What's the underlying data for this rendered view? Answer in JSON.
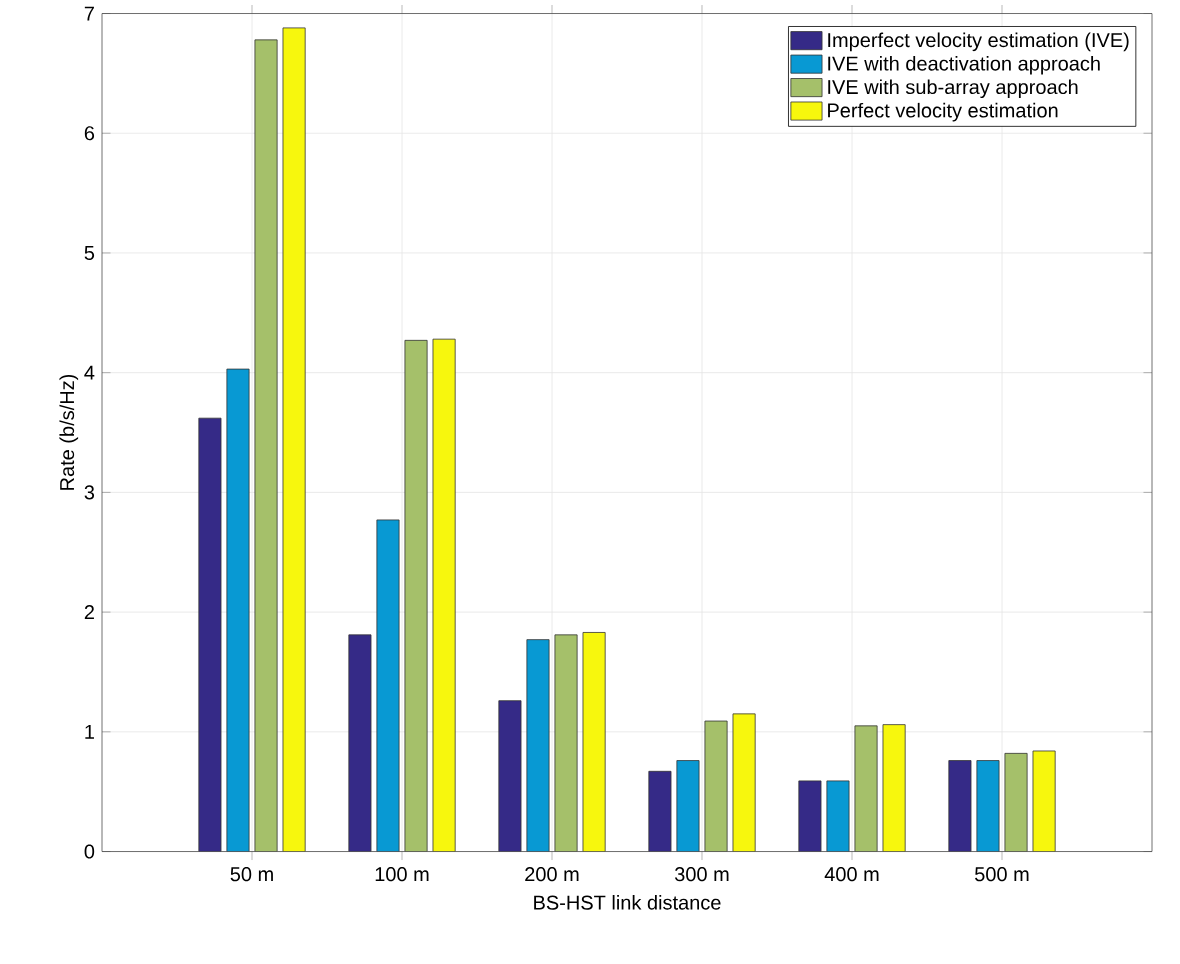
{
  "chart_data": {
    "type": "bar",
    "xlabel": "BS-HST link distance",
    "ylabel": "Rate (b/s/Hz)",
    "categories": [
      "50 m",
      "100 m",
      "200 m",
      "300 m",
      "400 m",
      "500 m"
    ],
    "series": [
      {
        "name": "Imperfect velocity estimation (IVE)",
        "color": "#352a87",
        "values": [
          3.62,
          1.81,
          1.26,
          0.67,
          0.59,
          0.76
        ]
      },
      {
        "name": "IVE with deactivation approach",
        "color": "#0899d3",
        "values": [
          4.03,
          2.77,
          1.77,
          0.76,
          0.59,
          0.76
        ]
      },
      {
        "name": "IVE with sub-array approach",
        "color": "#a5c06a",
        "values": [
          6.78,
          4.27,
          1.81,
          1.09,
          1.05,
          0.82
        ]
      },
      {
        "name": "Perfect velocity estimation",
        "color": "#f7f70d",
        "values": [
          6.88,
          4.28,
          1.83,
          1.15,
          1.06,
          0.84
        ]
      }
    ],
    "ylim": [
      0,
      7
    ],
    "yticks": [
      0,
      1,
      2,
      3,
      4,
      5,
      6,
      7
    ],
    "grid": true,
    "legend": "top right"
  }
}
